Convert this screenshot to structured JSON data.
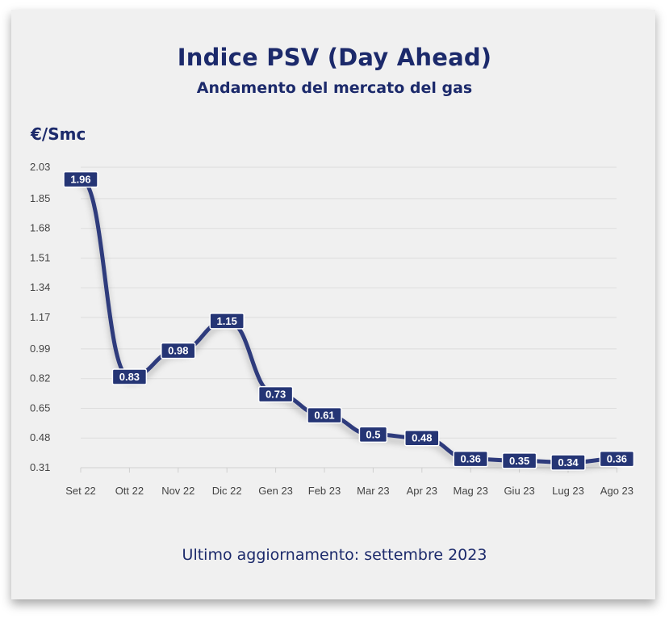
{
  "title": "Indice PSV (Day Ahead)",
  "subtitle": "Andamento del mercato del gas",
  "unit_label": "€/Smc",
  "footer": "Ultimo aggiornamento: settembre 2023",
  "colors": {
    "line": "#2d3a7c",
    "text": "#1c2a6b",
    "label_bg": "#253575",
    "grid": "#dddddd",
    "card": "#f0f0f0"
  },
  "chart_data": {
    "type": "line",
    "title": "Indice PSV (Day Ahead)",
    "subtitle": "Andamento del mercato del gas",
    "ylabel": "€/Smc",
    "xlabel": "",
    "categories": [
      "Set 22",
      "Ott 22",
      "Nov 22",
      "Dic 22",
      "Gen 23",
      "Feb 23",
      "Mar 23",
      "Apr 23",
      "Mag 23",
      "Giu 23",
      "Lug 23",
      "Ago 23"
    ],
    "values": [
      1.96,
      0.83,
      0.98,
      1.15,
      0.73,
      0.61,
      0.5,
      0.48,
      0.36,
      0.35,
      0.34,
      0.36
    ],
    "data_labels": [
      "1.96",
      "0.83",
      "0.98",
      "1.15",
      "0.73",
      "0.61",
      "0.5",
      "0.48",
      "0.36",
      "0.35",
      "0.34",
      "0.36"
    ],
    "yticks": [
      "0.31",
      "0.48",
      "0.65",
      "0.82",
      "0.99",
      "1.17",
      "1.34",
      "1.51",
      "1.68",
      "1.85",
      "2.03"
    ],
    "ylim": [
      0.31,
      2.03
    ],
    "grid": true,
    "legend": "none"
  }
}
